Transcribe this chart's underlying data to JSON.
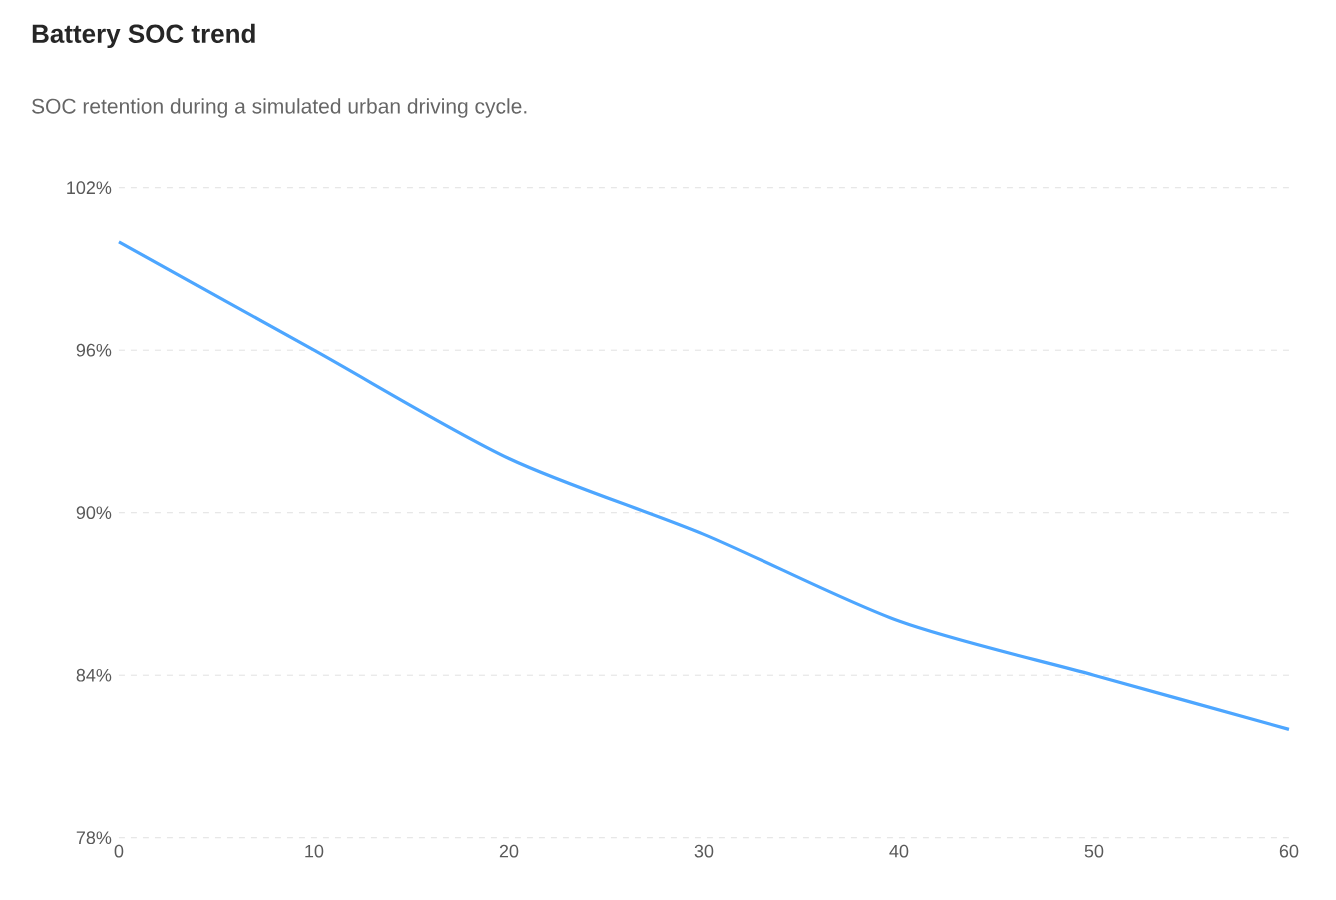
{
  "chart_data": {
    "type": "line",
    "title": "Battery SOC trend",
    "subtitle": "SOC retention during a simulated urban driving cycle.",
    "x": [
      0,
      10,
      20,
      30,
      40,
      50,
      60
    ],
    "series": [
      {
        "color": "#4da6ff",
        "values": [
          100,
          96,
          92,
          89.2,
          86,
          84,
          82
        ]
      }
    ],
    "xlim": [
      0,
      60
    ],
    "ylim": [
      78,
      102
    ],
    "xticks": [
      0,
      10,
      20,
      30,
      40,
      50,
      60
    ],
    "yticks": [
      {
        "value": 78,
        "label": "78%"
      },
      {
        "value": 84,
        "label": "84%"
      },
      {
        "value": 90,
        "label": "90%"
      },
      {
        "value": 96,
        "label": "96%"
      },
      {
        "value": 102,
        "label": "102%"
      }
    ],
    "grid": "y",
    "line_style": "solid"
  }
}
